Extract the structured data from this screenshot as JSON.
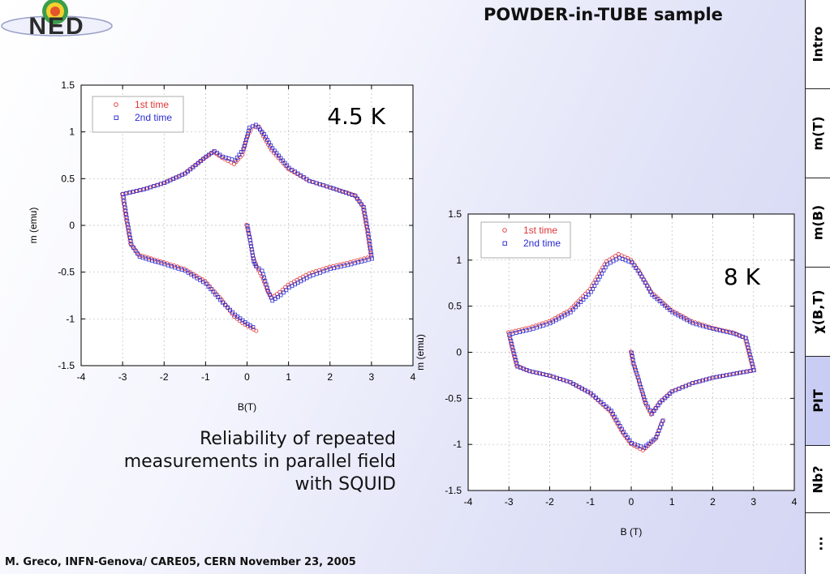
{
  "header": {
    "title": "POWDER-in-TUBE sample",
    "logo_text": "NED"
  },
  "caption": {
    "lines": [
      "Reliability of repeated",
      "measurements in parallel field",
      "with SQUID"
    ]
  },
  "footer": {
    "text": "M. Greco, INFN-Genova/ CARE05, CERN November 23, 2005"
  },
  "sidebar": {
    "items": [
      {
        "label": "Intro"
      },
      {
        "label": "m(T)"
      },
      {
        "label": "m(B)"
      },
      {
        "label": "χ(B,T)"
      },
      {
        "label": "PIT",
        "active": true
      },
      {
        "label": "Nb?"
      },
      {
        "label": "..."
      }
    ]
  },
  "colors": {
    "series1": "#e03535",
    "series2": "#2a2ad0",
    "active_tab": "#c9ccf3"
  },
  "chart_data": [
    {
      "type": "scatter",
      "annotation": "4.5 K",
      "xlabel": "B(T)",
      "ylabel": "m (emu)",
      "xlim": [
        -4,
        4
      ],
      "ylim": [
        -1.5,
        1.5
      ],
      "xticks": [
        "-4",
        "-3",
        "-2",
        "-1",
        "0",
        "1",
        "2",
        "3",
        "4"
      ],
      "yticks": [
        "-1.5",
        "-1",
        "-0.5",
        "0",
        "0.5",
        "1",
        "1.5"
      ],
      "grid": true,
      "legend_position": "top-left",
      "series": [
        {
          "name": "1st time",
          "marker": "circle",
          "virgin": [
            [
              0,
              0
            ],
            [
              0.05,
              -0.1
            ],
            [
              0.1,
              -0.2
            ],
            [
              0.15,
              -0.33
            ],
            [
              0.25,
              -0.45
            ],
            [
              0.4,
              -0.58
            ],
            [
              0.5,
              -0.7
            ]
          ],
          "ascending": [
            [
              0.5,
              -0.7
            ],
            [
              0.6,
              -0.78
            ],
            [
              0.8,
              -0.72
            ],
            [
              1.0,
              -0.64
            ],
            [
              1.5,
              -0.52
            ],
            [
              2.0,
              -0.45
            ],
            [
              2.5,
              -0.4
            ],
            [
              3.0,
              -0.34
            ]
          ],
          "descending": [
            [
              3.0,
              -0.34
            ],
            [
              2.9,
              -0.05
            ],
            [
              2.8,
              0.2
            ],
            [
              2.6,
              0.32
            ],
            [
              2.0,
              0.4
            ],
            [
              1.5,
              0.47
            ],
            [
              1.0,
              0.6
            ],
            [
              0.6,
              0.8
            ],
            [
              0.4,
              0.95
            ],
            [
              0.3,
              1.05
            ],
            [
              0.2,
              1.05
            ],
            [
              0.1,
              1.02
            ],
            [
              0.0,
              0.92
            ],
            [
              -0.1,
              0.75
            ],
            [
              -0.3,
              0.65
            ],
            [
              -0.6,
              0.72
            ],
            [
              -0.8,
              0.78
            ],
            [
              -1.0,
              0.72
            ],
            [
              -1.5,
              0.55
            ],
            [
              -2.0,
              0.45
            ],
            [
              -2.5,
              0.38
            ],
            [
              -3.0,
              0.33
            ]
          ],
          "return": [
            [
              -3.0,
              0.33
            ],
            [
              -2.9,
              0.05
            ],
            [
              -2.8,
              -0.2
            ],
            [
              -2.6,
              -0.32
            ],
            [
              -2.0,
              -0.4
            ],
            [
              -1.5,
              -0.47
            ],
            [
              -1.0,
              -0.6
            ],
            [
              -0.6,
              -0.8
            ],
            [
              -0.3,
              -0.98
            ],
            [
              -0.1,
              -1.05
            ],
            [
              0.1,
              -1.1
            ],
            [
              0.3,
              -1.15
            ]
          ]
        },
        {
          "name": "2nd time",
          "marker": "square",
          "virgin": [
            [
              0,
              0
            ],
            [
              0.05,
              -0.12
            ],
            [
              0.1,
              -0.25
            ],
            [
              0.15,
              -0.38
            ],
            [
              0.2,
              -0.43
            ],
            [
              0.35,
              -0.48
            ],
            [
              0.5,
              -0.7
            ]
          ],
          "ascending": [
            [
              0.5,
              -0.7
            ],
            [
              0.6,
              -0.8
            ],
            [
              0.8,
              -0.74
            ],
            [
              1.0,
              -0.66
            ],
            [
              1.5,
              -0.54
            ],
            [
              2.0,
              -0.46
            ],
            [
              2.5,
              -0.41
            ],
            [
              3.0,
              -0.35
            ]
          ],
          "descending": [
            [
              3.0,
              -0.35
            ],
            [
              2.9,
              -0.05
            ],
            [
              2.8,
              0.2
            ],
            [
              2.6,
              0.32
            ],
            [
              2.0,
              0.41
            ],
            [
              1.5,
              0.48
            ],
            [
              1.0,
              0.62
            ],
            [
              0.6,
              0.83
            ],
            [
              0.4,
              0.98
            ],
            [
              0.2,
              1.08
            ],
            [
              0.05,
              1.05
            ],
            [
              -0.1,
              0.82
            ],
            [
              -0.3,
              0.7
            ],
            [
              -0.6,
              0.74
            ],
            [
              -0.8,
              0.8
            ],
            [
              -1.0,
              0.74
            ],
            [
              -1.5,
              0.56
            ],
            [
              -2.0,
              0.46
            ],
            [
              -2.5,
              0.39
            ],
            [
              -3.0,
              0.34
            ]
          ],
          "return": [
            [
              -3.0,
              0.34
            ],
            [
              -2.9,
              0.05
            ],
            [
              -2.8,
              -0.2
            ],
            [
              -2.6,
              -0.33
            ],
            [
              -2.0,
              -0.41
            ],
            [
              -1.5,
              -0.48
            ],
            [
              -1.0,
              -0.62
            ],
            [
              -0.6,
              -0.82
            ],
            [
              -0.3,
              -0.95
            ],
            [
              0.0,
              -1.05
            ],
            [
              0.2,
              -1.1
            ]
          ]
        }
      ]
    },
    {
      "type": "scatter",
      "annotation": "8 K",
      "xlabel": "B (T)",
      "ylabel": "m (emu)",
      "xlim": [
        -4,
        4
      ],
      "ylim": [
        -1.5,
        1.5
      ],
      "xticks": [
        "-4",
        "-3",
        "-2",
        "-1",
        "0",
        "1",
        "2",
        "3",
        "4"
      ],
      "yticks": [
        "-1.5",
        "-1",
        "-0.5",
        "0",
        "0.5",
        "1",
        "1.5"
      ],
      "grid": true,
      "legend_position": "top-left",
      "series": [
        {
          "name": "1st time",
          "marker": "circle",
          "virgin": [
            [
              0,
              0
            ],
            [
              0.05,
              -0.12
            ],
            [
              0.15,
              -0.25
            ],
            [
              0.25,
              -0.4
            ],
            [
              0.35,
              -0.55
            ],
            [
              0.5,
              -0.68
            ]
          ],
          "ascending": [
            [
              0.5,
              -0.68
            ],
            [
              0.7,
              -0.55
            ],
            [
              1.0,
              -0.43
            ],
            [
              1.5,
              -0.34
            ],
            [
              2.0,
              -0.28
            ],
            [
              2.5,
              -0.24
            ],
            [
              3.0,
              -0.2
            ]
          ],
          "descending": [
            [
              3.0,
              -0.2
            ],
            [
              2.9,
              -0.02
            ],
            [
              2.8,
              0.15
            ],
            [
              2.5,
              0.21
            ],
            [
              2.0,
              0.26
            ],
            [
              1.5,
              0.33
            ],
            [
              1.0,
              0.45
            ],
            [
              0.5,
              0.65
            ],
            [
              0.2,
              0.88
            ],
            [
              0.0,
              1.0
            ],
            [
              -0.3,
              1.06
            ],
            [
              -0.6,
              0.98
            ],
            [
              -1.0,
              0.68
            ],
            [
              -1.5,
              0.45
            ],
            [
              -2.0,
              0.33
            ],
            [
              -2.5,
              0.26
            ],
            [
              -3.0,
              0.21
            ]
          ],
          "return": [
            [
              -3.0,
              0.21
            ],
            [
              -2.9,
              0.02
            ],
            [
              -2.8,
              -0.15
            ],
            [
              -2.5,
              -0.21
            ],
            [
              -2.0,
              -0.26
            ],
            [
              -1.5,
              -0.33
            ],
            [
              -1.0,
              -0.45
            ],
            [
              -0.5,
              -0.65
            ],
            [
              -0.2,
              -0.88
            ],
            [
              0.0,
              -1.0
            ],
            [
              0.3,
              -1.07
            ],
            [
              0.6,
              -0.95
            ],
            [
              0.8,
              -0.72
            ]
          ]
        },
        {
          "name": "2nd time",
          "marker": "square",
          "virgin": [
            [
              0,
              0
            ],
            [
              0.05,
              -0.12
            ],
            [
              0.15,
              -0.26
            ],
            [
              0.25,
              -0.41
            ],
            [
              0.35,
              -0.55
            ],
            [
              0.5,
              -0.66
            ]
          ],
          "ascending": [
            [
              0.5,
              -0.66
            ],
            [
              0.7,
              -0.54
            ],
            [
              1.0,
              -0.42
            ],
            [
              1.5,
              -0.33
            ],
            [
              2.0,
              -0.27
            ],
            [
              2.5,
              -0.23
            ],
            [
              3.0,
              -0.19
            ]
          ],
          "descending": [
            [
              3.0,
              -0.19
            ],
            [
              2.9,
              -0.02
            ],
            [
              2.8,
              0.16
            ],
            [
              2.5,
              0.21
            ],
            [
              2.0,
              0.26
            ],
            [
              1.5,
              0.32
            ],
            [
              1.0,
              0.44
            ],
            [
              0.5,
              0.63
            ],
            [
              0.2,
              0.86
            ],
            [
              0.0,
              0.98
            ],
            [
              -0.3,
              1.03
            ],
            [
              -0.6,
              0.96
            ],
            [
              -1.0,
              0.66
            ],
            [
              -1.5,
              0.44
            ],
            [
              -2.0,
              0.32
            ],
            [
              -2.5,
              0.25
            ],
            [
              -3.0,
              0.2
            ]
          ],
          "return": [
            [
              -3.0,
              0.2
            ],
            [
              -2.9,
              0.02
            ],
            [
              -2.8,
              -0.15
            ],
            [
              -2.5,
              -0.2
            ],
            [
              -2.0,
              -0.25
            ],
            [
              -1.5,
              -0.32
            ],
            [
              -1.0,
              -0.44
            ],
            [
              -0.5,
              -0.63
            ],
            [
              -0.2,
              -0.86
            ],
            [
              0.0,
              -0.98
            ],
            [
              0.3,
              -1.03
            ],
            [
              0.6,
              -0.92
            ],
            [
              0.8,
              -0.7
            ]
          ]
        }
      ]
    }
  ]
}
